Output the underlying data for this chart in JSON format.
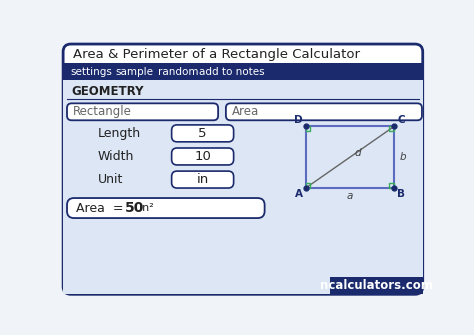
{
  "title": "Area & Perimeter of a Rectangle Calculator",
  "tab_items": [
    "settings",
    "sample",
    "random",
    "add to notes"
  ],
  "section_label": "GEOMETRY",
  "dropdown1": "Rectangle",
  "dropdown2": "Area",
  "field_length_label": "Length",
  "field_length_value": "5",
  "field_width_label": "Width",
  "field_width_value": "10",
  "field_unit_label": "Unit",
  "field_unit_value": "in",
  "brand": "ncalculators.com",
  "bg_color": "#f0f4f8",
  "outer_border_color": "#1a2a6c",
  "tab_bg": "#1a2a6c",
  "tab_text_color": "#ffffff",
  "field_border": "#1a2a6c",
  "content_bg": "#dce6f5",
  "white": "#ffffff",
  "rect_diagram_color": "#5c6bc0",
  "corner_sq_color": "#3aaa5c",
  "lbl_color": "#1a2a6c",
  "text_dark": "#222222",
  "text_grey": "#666666",
  "brand_bg": "#1a2a6c",
  "diag_color": "#666666",
  "dot_color": "#1a2a6c",
  "geometry_line_color": "#1a2a6c"
}
